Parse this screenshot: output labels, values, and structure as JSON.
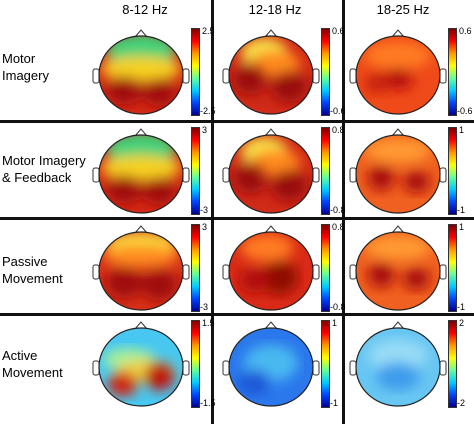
{
  "columns": [
    "8-12 Hz",
    "12-18 Hz",
    "18-25 Hz"
  ],
  "rows": [
    {
      "label": "Motor\nImagery",
      "scales": [
        [
          "2.5",
          "-2.5"
        ],
        [
          "0.6",
          "-0.6"
        ],
        [
          "0.6",
          "-0.6"
        ]
      ]
    },
    {
      "label": "Motor Imagery\n& Feedback",
      "scales": [
        [
          "3",
          "-3"
        ],
        [
          "0.8",
          "-0.8"
        ],
        [
          "1",
          "-1"
        ]
      ]
    },
    {
      "label": "Passive\nMovement",
      "scales": [
        [
          "3",
          "-3"
        ],
        [
          "0.8",
          "-0.8"
        ],
        [
          "1",
          "-1"
        ]
      ]
    },
    {
      "label": "Active\nMovement",
      "scales": [
        [
          "1.5",
          "-1.5"
        ],
        [
          "1",
          "-1"
        ],
        [
          "2",
          "-2"
        ]
      ]
    }
  ],
  "colormap": "jet",
  "maps": [
    [
      "red-frontal-green",
      "red-upper-yellow",
      "red-orange-uniform"
    ],
    [
      "red-frontal-green",
      "red-upper-yellow",
      "orange-red-hotspots"
    ],
    [
      "red-frontal-yellow",
      "red-dark-center",
      "orange-red-hotspots"
    ],
    [
      "cyan-with-red-lower",
      "blue-uniform",
      "light-blue-uniform"
    ]
  ]
}
